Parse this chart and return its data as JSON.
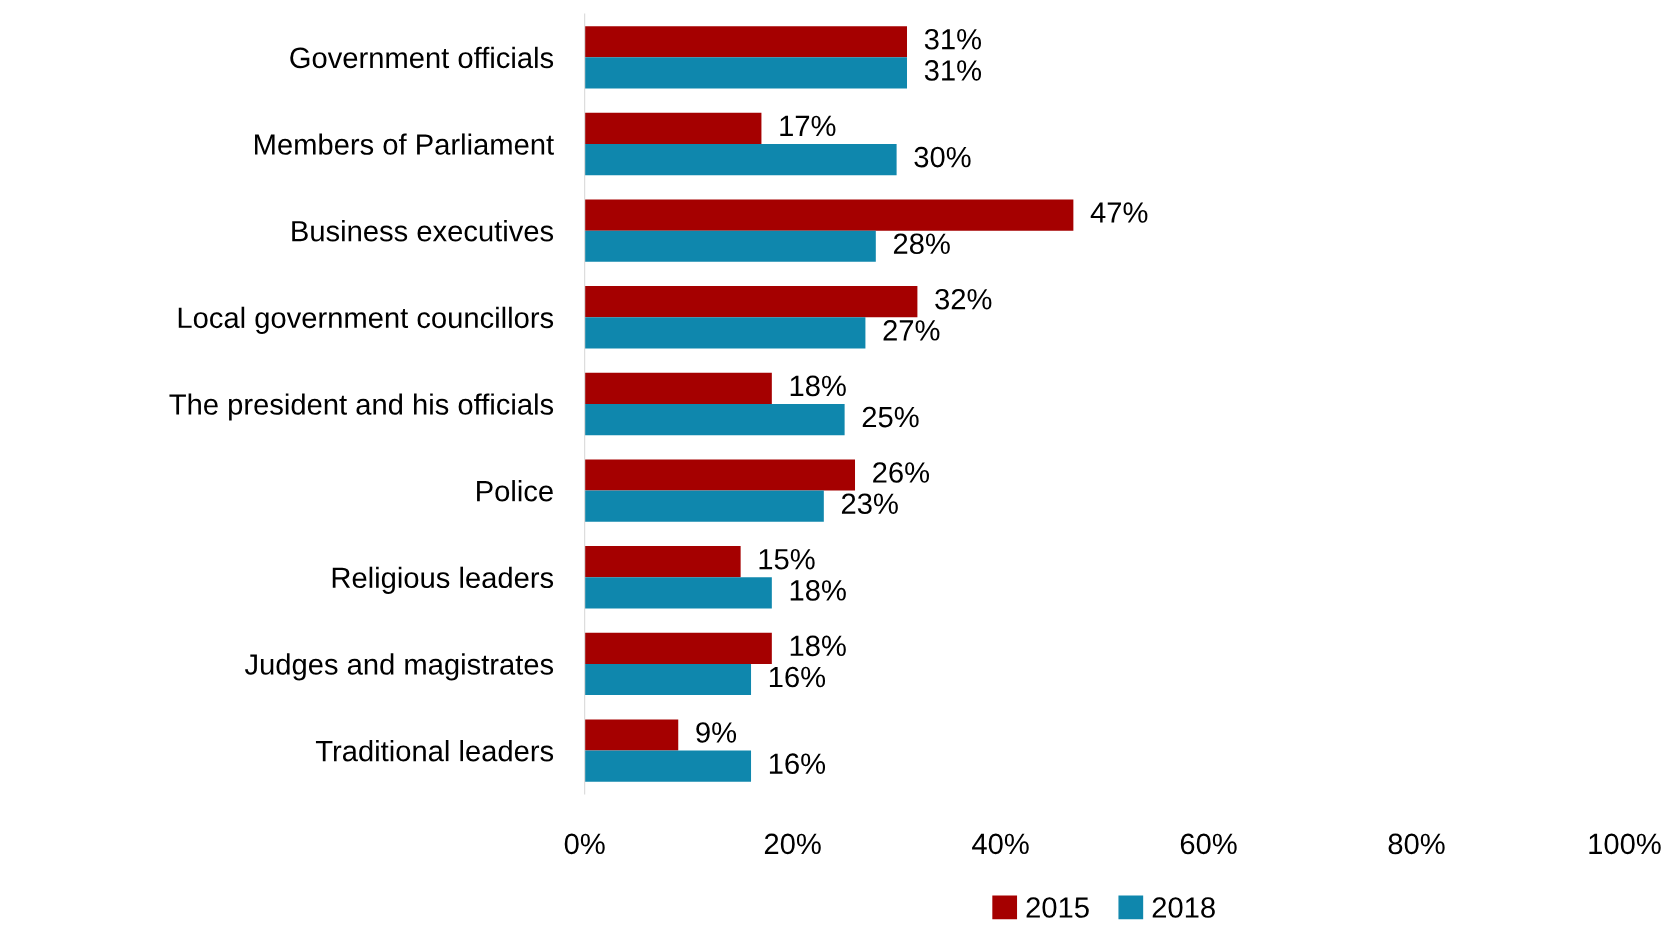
{
  "chart_data": {
    "type": "bar",
    "orientation": "horizontal",
    "categories": [
      "Government officials",
      "Members of Parliament",
      "Business executives",
      "Local government councillors",
      "The president and his officials",
      "Police",
      "Religious leaders",
      "Judges and magistrates",
      "Traditional leaders"
    ],
    "series": [
      {
        "name": "2015",
        "color": "#a50000",
        "values": [
          31,
          17,
          47,
          32,
          18,
          26,
          15,
          18,
          9
        ],
        "value_labels": [
          "31%",
          "17%",
          "47%",
          "32%",
          "18%",
          "26%",
          "15%",
          "18%",
          "9%"
        ]
      },
      {
        "name": "2018",
        "color": "#0f87ad",
        "values": [
          31,
          30,
          28,
          27,
          25,
          23,
          18,
          16,
          16
        ],
        "value_labels": [
          "31%",
          "30%",
          "28%",
          "27%",
          "25%",
          "23%",
          "18%",
          "16%",
          "16%"
        ]
      }
    ],
    "xlim": [
      0,
      100
    ],
    "xticks": [
      {
        "value": 0,
        "label": "0%"
      },
      {
        "value": 20,
        "label": "20%"
      },
      {
        "value": 40,
        "label": "40%"
      },
      {
        "value": 60,
        "label": "60%"
      },
      {
        "value": 80,
        "label": "80%"
      },
      {
        "value": 100,
        "label": "100%"
      }
    ],
    "grid": false,
    "legend": "bottom"
  }
}
